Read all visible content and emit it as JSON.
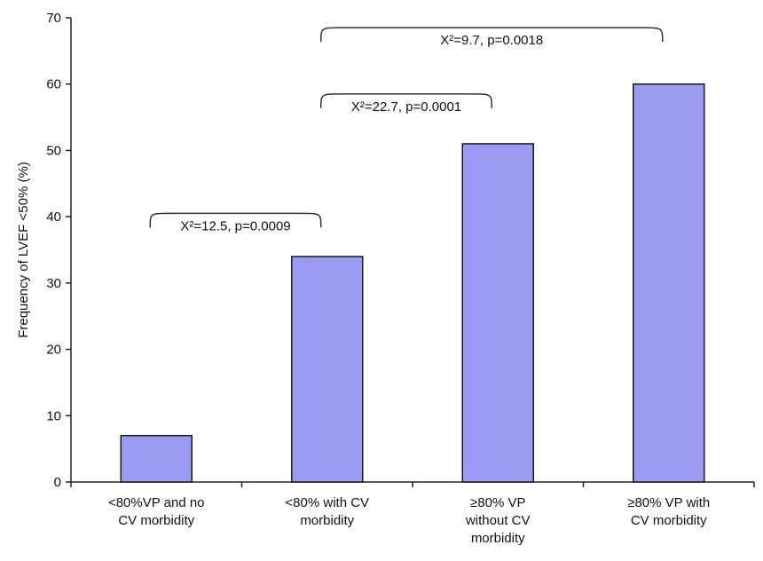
{
  "chart_data": {
    "type": "bar",
    "ylabel": "Frequency of LVEF <50% (%)",
    "xlabel": "",
    "ylim": [
      0,
      70
    ],
    "yticks": [
      0,
      10,
      20,
      30,
      40,
      50,
      60,
      70
    ],
    "grid": false,
    "categories": [
      [
        "<80%VP and no",
        "CV morbidity"
      ],
      [
        "<80% with CV",
        "morbidity"
      ],
      [
        "≥80% VP",
        "without CV",
        "morbidity"
      ],
      [
        "≥80% VP with",
        "CV morbidity"
      ]
    ],
    "values": [
      7,
      34,
      51,
      60
    ],
    "colors": {
      "bar": "#9a9af2",
      "bar_stroke": "#1a1a1a",
      "axis": "#222222",
      "bracket": "#333333"
    },
    "annotations": [
      {
        "text": "X²=12.5,  p=0.0009",
        "from_category": 0,
        "to_category": 1,
        "y": 40.5
      },
      {
        "text": "X²=22.7,  p=0.0001",
        "from_category": 1,
        "to_category": 2,
        "y": 58.5
      },
      {
        "text": "X²=9.7,  p=0.0018",
        "from_category": 1,
        "to_category": 3,
        "y": 68.5
      }
    ]
  }
}
